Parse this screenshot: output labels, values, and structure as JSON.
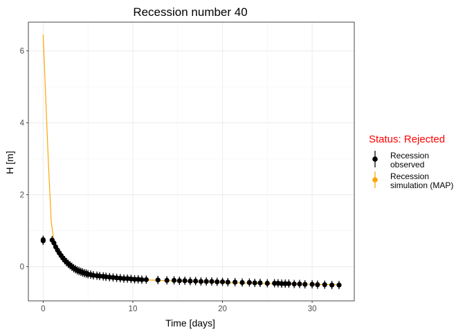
{
  "chart_data": {
    "type": "scatter",
    "title": "Recession number 40",
    "xlabel": "Time [days]",
    "ylabel": "H [m]",
    "xlim": [
      -1.65,
      34.7
    ],
    "ylim": [
      -0.95,
      6.8
    ],
    "xticks": [
      0,
      10,
      20,
      30
    ],
    "yticks": [
      0,
      2,
      4,
      6
    ],
    "grid": true,
    "legend": {
      "title": "Status: Rejected",
      "title_color": "#ff0000",
      "position": "right",
      "entries": [
        {
          "label": [
            "Recession",
            "observed"
          ],
          "color": "#000000"
        },
        {
          "label": [
            "Recession",
            "simulation (MAP)"
          ],
          "color": "#ffa500"
        }
      ]
    },
    "series": [
      {
        "name": "Recession observed",
        "color": "#000000",
        "x": [
          0.0,
          0.0,
          1.0,
          1.2,
          1.4,
          1.6,
          1.8,
          2.0,
          2.2,
          2.4,
          2.6,
          2.8,
          3.0,
          3.2,
          3.4,
          3.6,
          3.8,
          4.0,
          4.2,
          4.4,
          4.6,
          4.8,
          5.0,
          5.3,
          5.6,
          6.0,
          6.3,
          6.7,
          7.0,
          7.4,
          7.8,
          8.2,
          8.6,
          9.0,
          9.4,
          9.8,
          10.2,
          10.6,
          11.0,
          11.5,
          12.8,
          13.8,
          14.6,
          15.2,
          15.8,
          16.4,
          17.0,
          17.6,
          18.2,
          18.8,
          19.4,
          20.0,
          20.6,
          21.4,
          22.2,
          23.0,
          23.6,
          24.2,
          25.0,
          25.8,
          26.2,
          26.6,
          27.0,
          27.4,
          28.0,
          28.6,
          29.2,
          30.0,
          30.6,
          31.4,
          32.2,
          33.0
        ],
        "y": [
          0.75,
          0.72,
          0.74,
          0.66,
          0.55,
          0.46,
          0.38,
          0.31,
          0.24,
          0.18,
          0.13,
          0.08,
          0.04,
          0.0,
          -0.04,
          -0.07,
          -0.1,
          -0.12,
          -0.14,
          -0.16,
          -0.18,
          -0.19,
          -0.21,
          -0.22,
          -0.24,
          -0.25,
          -0.26,
          -0.27,
          -0.28,
          -0.29,
          -0.3,
          -0.31,
          -0.32,
          -0.33,
          -0.33,
          -0.34,
          -0.35,
          -0.35,
          -0.36,
          -0.36,
          -0.37,
          -0.38,
          -0.38,
          -0.39,
          -0.39,
          -0.4,
          -0.4,
          -0.41,
          -0.41,
          -0.41,
          -0.42,
          -0.42,
          -0.43,
          -0.43,
          -0.44,
          -0.44,
          -0.45,
          -0.45,
          -0.46,
          -0.46,
          -0.46,
          -0.47,
          -0.47,
          -0.47,
          -0.48,
          -0.48,
          -0.49,
          -0.49,
          -0.5,
          -0.5,
          -0.51,
          -0.51
        ]
      },
      {
        "name": "Recession simulation (MAP)",
        "color": "#ffa500",
        "x": [
          0.0,
          0.3,
          0.6,
          0.9,
          1.2,
          1.6,
          2.0,
          2.5,
          3.0,
          3.5,
          4.0,
          5.0,
          6.0,
          7.0,
          8.0,
          10.0,
          12.0,
          14.0,
          17.0,
          20.0,
          23.0,
          26.0,
          30.0,
          33.0
        ],
        "y": [
          6.45,
          4.6,
          2.8,
          1.25,
          0.72,
          0.52,
          0.36,
          0.2,
          0.08,
          -0.01,
          -0.07,
          -0.17,
          -0.23,
          -0.27,
          -0.3,
          -0.34,
          -0.37,
          -0.39,
          -0.42,
          -0.44,
          -0.46,
          -0.47,
          -0.49,
          -0.5
        ]
      }
    ]
  }
}
